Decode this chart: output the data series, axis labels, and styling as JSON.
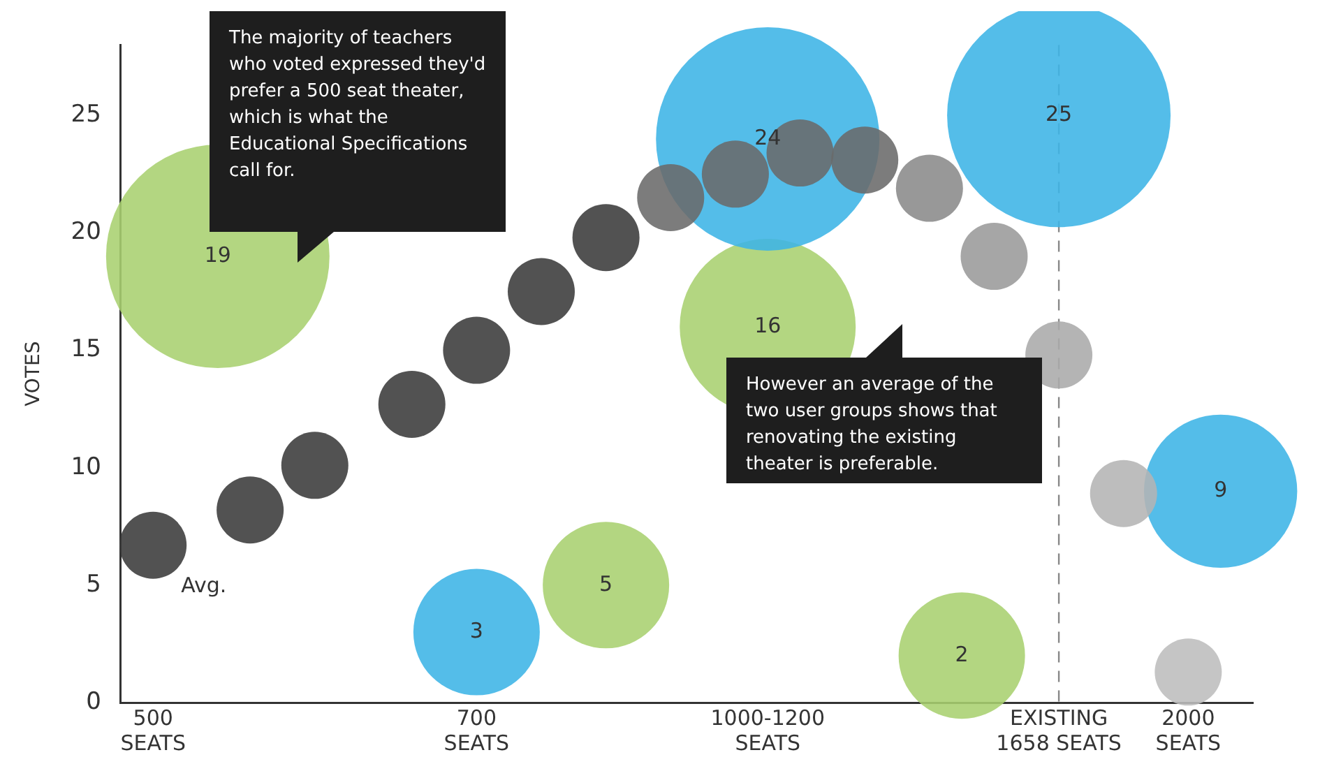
{
  "chart_data": {
    "type": "bubble",
    "ylabel": "VOTES",
    "ylim": [
      0,
      28
    ],
    "categories": [
      "500\nSEATS",
      null,
      null,
      null,
      null,
      null,
      null,
      null,
      null,
      null,
      "700\nSEATS",
      null,
      null,
      null,
      null,
      null,
      null,
      null,
      null,
      "1000-1200\nSEATS",
      null,
      null,
      null,
      null,
      null,
      null,
      null,
      null,
      "EXISTING\n1658 SEATS",
      null,
      null,
      null,
      "2000\nSEATS",
      null
    ],
    "yticks": [
      0,
      5,
      10,
      15,
      20,
      25
    ],
    "grid": false,
    "legend": false,
    "ref_lines": [
      {
        "axis": "x",
        "value": "EXISTING\n1658 SEATS",
        "color": "#888888",
        "line_style": "dashed"
      }
    ],
    "annotations": [
      "The majority of teachers who voted expressed they'd prefer a 500 seat theater, which is what the Educational Specifications call for.",
      "However an average of the two user groups shows that renovating the existing theater is preferable."
    ],
    "series": [
      {
        "name": "Avg.",
        "colors": [
          "#3a3a3a",
          null,
          null,
          "#3a3a3a",
          null,
          "#3a3a3a",
          null,
          null,
          "#3a3a3a",
          null,
          "#3a3a3a",
          null,
          "#3a3a3a",
          null,
          "#3a3a3a",
          null,
          "#6a6a6a",
          null,
          "#6a6a6a",
          null,
          "#6a6a6a",
          null,
          "#6a6a6a",
          null,
          "#8a8a8a",
          null,
          "#9a9a9a",
          null,
          "#aaaaaa",
          null,
          "#b4b4b4",
          null,
          "#bdbdbd",
          null
        ],
        "values": [
          6.7,
          null,
          null,
          8.2,
          null,
          10.1,
          null,
          null,
          12.7,
          null,
          15.0,
          null,
          17.5,
          null,
          19.8,
          null,
          21.5,
          null,
          22.5,
          null,
          23.4,
          null,
          23.1,
          null,
          21.9,
          null,
          19.0,
          null,
          14.8,
          null,
          8.9,
          null,
          1.3,
          null
        ],
        "sizes": [
          0.09,
          null,
          null,
          0.09,
          null,
          0.09,
          null,
          null,
          0.09,
          null,
          0.09,
          null,
          0.09,
          null,
          0.09,
          null,
          0.09,
          null,
          0.09,
          null,
          0.09,
          null,
          0.09,
          null,
          0.09,
          null,
          0.09,
          null,
          0.09,
          null,
          0.09,
          null,
          0.09,
          null
        ]
      },
      {
        "color": "#3cb4e6",
        "value_labels": [
          null,
          null,
          null,
          null,
          null,
          null,
          null,
          null,
          null,
          null,
          "3",
          null,
          null,
          null,
          null,
          null,
          null,
          null,
          null,
          "24",
          null,
          null,
          null,
          null,
          null,
          null,
          null,
          null,
          "25",
          null,
          null,
          null,
          null,
          "9"
        ],
        "values": [
          null,
          null,
          null,
          null,
          null,
          null,
          null,
          null,
          null,
          null,
          3,
          null,
          null,
          null,
          null,
          null,
          null,
          null,
          null,
          24,
          null,
          null,
          null,
          null,
          null,
          null,
          null,
          null,
          25,
          null,
          null,
          null,
          null,
          9
        ],
        "sizes": [
          null,
          null,
          null,
          null,
          null,
          null,
          null,
          null,
          null,
          null,
          0.32,
          null,
          null,
          null,
          null,
          null,
          null,
          null,
          null,
          1,
          null,
          null,
          null,
          null,
          null,
          null,
          null,
          null,
          1,
          null,
          null,
          null,
          null,
          0.47
        ]
      },
      {
        "color": "#a9d06f",
        "value_labels": [
          null,
          null,
          "19",
          null,
          null,
          null,
          null,
          null,
          null,
          null,
          null,
          null,
          null,
          null,
          "5",
          null,
          null,
          null,
          null,
          "16",
          null,
          null,
          null,
          null,
          null,
          "2",
          null,
          null,
          null,
          null,
          null,
          null,
          null,
          null
        ],
        "values": [
          null,
          null,
          19,
          null,
          null,
          null,
          null,
          null,
          null,
          null,
          null,
          null,
          null,
          null,
          5,
          null,
          null,
          null,
          null,
          16,
          null,
          null,
          null,
          null,
          null,
          2,
          null,
          null,
          null,
          null,
          null,
          null,
          null,
          null
        ],
        "sizes": [
          null,
          null,
          1,
          null,
          null,
          null,
          null,
          null,
          null,
          null,
          null,
          null,
          null,
          null,
          0.32,
          null,
          null,
          null,
          null,
          0.62,
          null,
          null,
          null,
          null,
          null,
          0.32,
          null,
          null,
          null,
          null,
          null,
          null,
          null,
          null
        ]
      }
    ]
  }
}
